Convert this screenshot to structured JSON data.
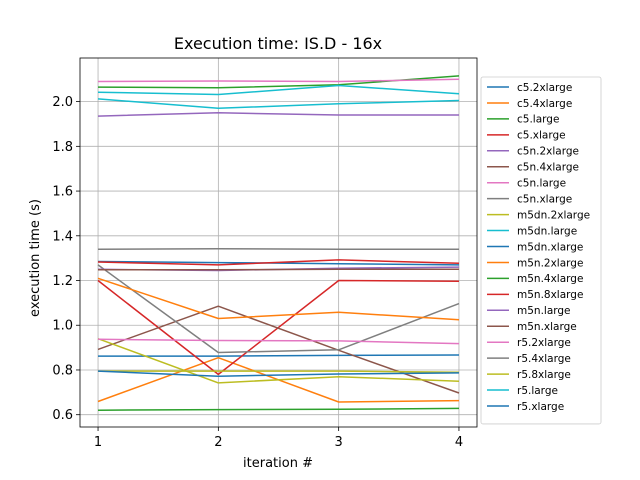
{
  "chart_data": {
    "type": "line",
    "title": "Execution time: IS.D - 16x",
    "xlabel": "iteration #",
    "ylabel": "execution time (s)",
    "x": [
      1,
      2,
      3,
      4
    ],
    "xlim": [
      0.85,
      4.15
    ],
    "ylim": [
      0.545,
      2.195
    ],
    "xticks": [
      "1",
      "2",
      "3",
      "4"
    ],
    "yticks": [
      "0.6",
      "0.8",
      "1.0",
      "1.2",
      "1.4",
      "1.6",
      "1.8",
      "2.0"
    ],
    "ytick_values": [
      0.6,
      0.8,
      1.0,
      1.2,
      1.4,
      1.6,
      1.8,
      2.0
    ],
    "grid": true,
    "legend_position": "right",
    "series": [
      {
        "name": "c5.2xlarge",
        "color": "#1f77b4",
        "values": [
          0.862,
          0.862,
          0.865,
          0.867
        ]
      },
      {
        "name": "c5.4xlarge",
        "color": "#ff7f0e",
        "values": [
          0.659,
          0.855,
          0.657,
          0.663
        ]
      },
      {
        "name": "c5.large",
        "color": "#2ca02c",
        "values": [
          2.065,
          2.062,
          2.075,
          2.115
        ]
      },
      {
        "name": "c5.xlarge",
        "color": "#d62728",
        "values": [
          1.2,
          0.78,
          1.2,
          1.197
        ]
      },
      {
        "name": "c5n.2xlarge",
        "color": "#9467bd",
        "values": [
          1.935,
          1.95,
          1.94,
          1.94
        ]
      },
      {
        "name": "c5n.4xlarge",
        "color": "#8c564b",
        "values": [
          0.892,
          1.085,
          0.888,
          0.697
        ]
      },
      {
        "name": "c5n.large",
        "color": "#e377c2",
        "values": [
          2.09,
          2.092,
          2.09,
          2.1
        ]
      },
      {
        "name": "c5n.xlarge",
        "color": "#7f7f7f",
        "values": [
          1.27,
          0.878,
          0.89,
          1.097
        ]
      },
      {
        "name": "m5dn.2xlarge",
        "color": "#bcbd22",
        "values": [
          0.94,
          0.742,
          0.77,
          0.75
        ]
      },
      {
        "name": "m5dn.large",
        "color": "#17becf",
        "values": [
          2.042,
          2.032,
          2.072,
          2.035
        ]
      },
      {
        "name": "m5dn.xlarge",
        "color": "#1f77b4",
        "values": [
          1.285,
          1.28,
          1.275,
          1.27
        ]
      },
      {
        "name": "m5n.2xlarge",
        "color": "#ff7f0e",
        "values": [
          1.21,
          1.03,
          1.058,
          1.025
        ]
      },
      {
        "name": "m5n.4xlarge",
        "color": "#2ca02c",
        "values": [
          0.62,
          0.623,
          0.624,
          0.628
        ]
      },
      {
        "name": "m5n.8xlarge",
        "color": "#d62728",
        "values": [
          1.283,
          1.27,
          1.292,
          1.277
        ]
      },
      {
        "name": "m5n.large",
        "color": "#9467bd",
        "values": [
          1.25,
          1.245,
          1.255,
          1.26
        ]
      },
      {
        "name": "m5n.xlarge",
        "color": "#8c564b",
        "values": [
          1.248,
          1.248,
          1.25,
          1.25
        ]
      },
      {
        "name": "r5.2xlarge",
        "color": "#e377c2",
        "values": [
          0.937,
          0.932,
          0.93,
          0.918
        ]
      },
      {
        "name": "r5.4xlarge",
        "color": "#7f7f7f",
        "values": [
          1.34,
          1.342,
          1.34,
          1.34
        ]
      },
      {
        "name": "r5.8xlarge",
        "color": "#bcbd22",
        "values": [
          0.795,
          0.795,
          0.795,
          0.79
        ]
      },
      {
        "name": "r5.large",
        "color": "#17becf",
        "values": [
          2.012,
          1.97,
          1.99,
          2.005
        ]
      },
      {
        "name": "r5.xlarge",
        "color": "#1f77b4",
        "values": [
          0.795,
          0.772,
          0.782,
          0.787
        ]
      }
    ]
  }
}
